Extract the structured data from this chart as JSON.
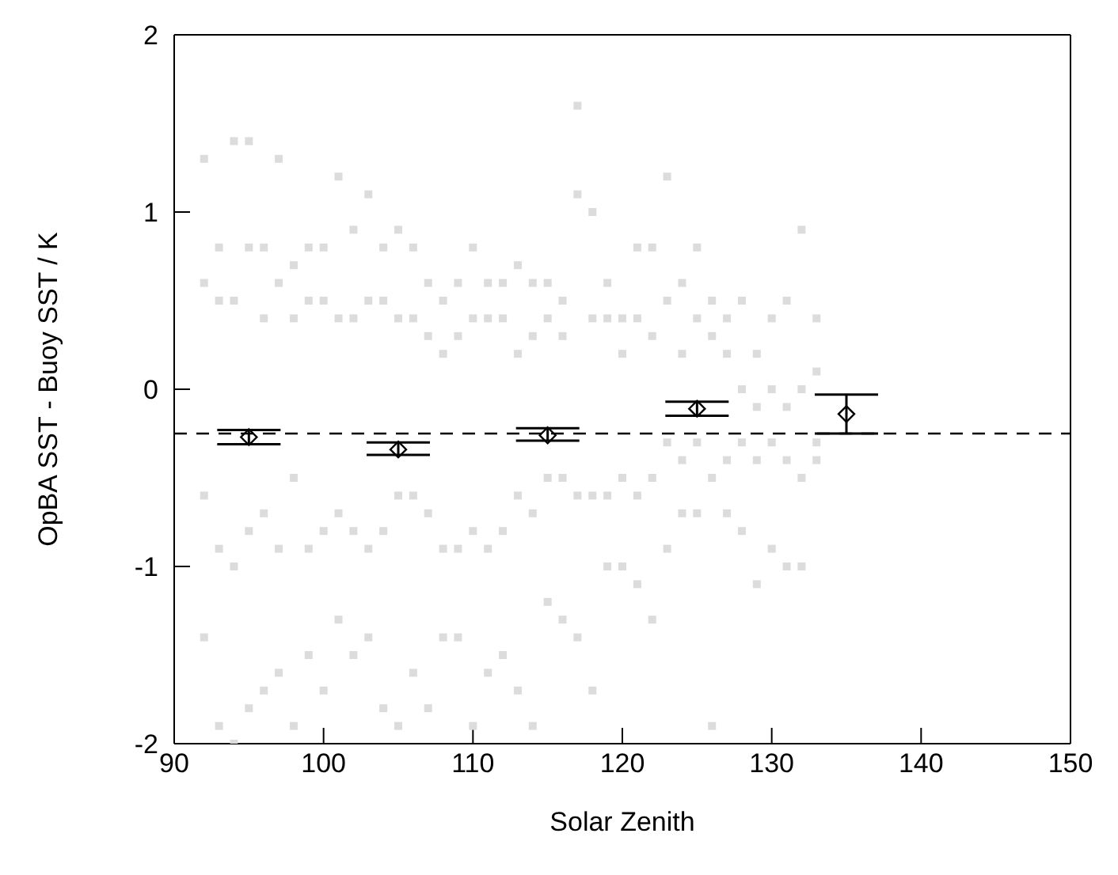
{
  "chart_data": {
    "type": "scatter",
    "xlabel": "Solar Zenith",
    "ylabel": "OpBA SST - Buoy SST / K",
    "xlim": [
      90,
      150
    ],
    "xticks": [
      90,
      100,
      110,
      120,
      130,
      140,
      150
    ],
    "ylim": [
      -2,
      2
    ],
    "yticks": [
      -2,
      -1,
      0,
      1,
      2
    ],
    "grid": false,
    "ref_lines": [
      {
        "axis": "y",
        "value": -0.25,
        "line_style": "dashed",
        "color": "#000000"
      }
    ],
    "series": [
      {
        "type": "scatter",
        "marker": "square",
        "color": "#dcdcdc",
        "x": [
          92,
          92,
          92,
          92,
          93,
          93,
          93,
          93,
          94,
          94,
          94,
          94,
          95,
          95,
          95,
          95,
          96,
          96,
          96,
          96,
          97,
          97,
          97,
          97,
          98,
          98,
          98,
          98,
          99,
          99,
          99,
          99,
          100,
          100,
          100,
          100,
          101,
          101,
          101,
          101,
          102,
          102,
          102,
          102,
          103,
          103,
          103,
          103,
          104,
          104,
          104,
          104,
          105,
          105,
          105,
          105,
          106,
          106,
          106,
          106,
          107,
          107,
          107,
          107,
          108,
          108,
          108,
          108,
          109,
          109,
          109,
          109,
          110,
          110,
          110,
          110,
          111,
          111,
          111,
          111,
          112,
          112,
          112,
          112,
          113,
          113,
          113,
          113,
          114,
          114,
          114,
          114,
          115,
          115,
          115,
          115,
          116,
          116,
          116,
          116,
          117,
          117,
          117,
          117,
          118,
          118,
          118,
          118,
          119,
          119,
          119,
          119,
          120,
          120,
          120,
          120,
          121,
          121,
          121,
          121,
          122,
          122,
          122,
          122,
          123,
          123,
          123,
          123,
          124,
          124,
          124,
          124,
          125,
          125,
          125,
          125,
          126,
          126,
          126,
          126,
          127,
          127,
          127,
          127,
          128,
          128,
          128,
          128,
          129,
          129,
          129,
          129,
          130,
          130,
          130,
          130,
          131,
          131,
          131,
          131,
          132,
          132,
          132,
          132,
          133,
          133,
          133,
          133
        ],
        "values": [
          1.3,
          0.6,
          -0.6,
          -1.4,
          0.8,
          0.5,
          -0.9,
          -1.9,
          1.4,
          0.5,
          -1.0,
          -2.0,
          1.4,
          0.8,
          -0.8,
          -1.8,
          0.8,
          0.4,
          -0.7,
          -1.7,
          1.3,
          0.6,
          -0.9,
          -1.6,
          0.7,
          0.4,
          -0.5,
          -1.9,
          0.8,
          0.5,
          -0.9,
          -1.5,
          0.8,
          0.5,
          -0.8,
          -1.7,
          1.2,
          0.4,
          -0.7,
          -1.3,
          0.9,
          0.4,
          -0.8,
          -1.5,
          1.1,
          0.5,
          -0.9,
          -1.4,
          0.8,
          0.5,
          -0.8,
          -1.8,
          0.9,
          0.4,
          -0.6,
          -1.9,
          0.8,
          0.4,
          -0.6,
          -1.6,
          0.6,
          0.3,
          -0.7,
          -1.8,
          0.5,
          0.2,
          -0.9,
          -1.4,
          0.6,
          0.3,
          -0.9,
          -1.4,
          0.8,
          0.4,
          -0.8,
          -1.9,
          0.6,
          0.4,
          -0.9,
          -1.6,
          0.6,
          0.4,
          -0.8,
          -1.5,
          0.7,
          0.2,
          -0.6,
          -1.7,
          0.6,
          0.3,
          -0.7,
          -1.9,
          0.6,
          0.4,
          -0.5,
          -1.2,
          0.5,
          0.3,
          -0.5,
          -1.3,
          1.6,
          1.1,
          -0.6,
          -1.4,
          1.0,
          0.4,
          -0.6,
          -1.7,
          0.6,
          0.4,
          -0.6,
          -1.0,
          0.4,
          0.2,
          -0.5,
          -1.0,
          0.8,
          0.4,
          -0.6,
          -1.1,
          0.8,
          0.3,
          -0.5,
          -1.3,
          1.2,
          0.5,
          -0.3,
          -0.9,
          0.6,
          0.2,
          -0.4,
          -0.7,
          0.8,
          0.4,
          -0.3,
          -0.7,
          0.5,
          0.3,
          -0.5,
          -1.9,
          0.4,
          0.2,
          -0.4,
          -0.7,
          0.5,
          0.0,
          -0.3,
          -0.8,
          0.2,
          -0.1,
          -0.4,
          -1.1,
          0.4,
          0.0,
          -0.3,
          -0.9,
          0.5,
          -0.1,
          -0.4,
          -1.0,
          0.9,
          0.0,
          -0.5,
          -1.0,
          0.4,
          0.1,
          -0.3,
          -0.4
        ]
      },
      {
        "type": "scatter",
        "marker": "diamond",
        "color": "#000000",
        "x": [
          95,
          105,
          115,
          125,
          135
        ],
        "values": [
          -0.27,
          -0.34,
          -0.26,
          -0.11,
          -0.14
        ],
        "errors": [
          [
            -0.31,
            -0.23
          ],
          [
            -0.37,
            -0.3
          ],
          [
            -0.29,
            -0.22
          ],
          [
            -0.15,
            -0.07
          ],
          [
            -0.25,
            -0.03
          ]
        ]
      }
    ]
  }
}
